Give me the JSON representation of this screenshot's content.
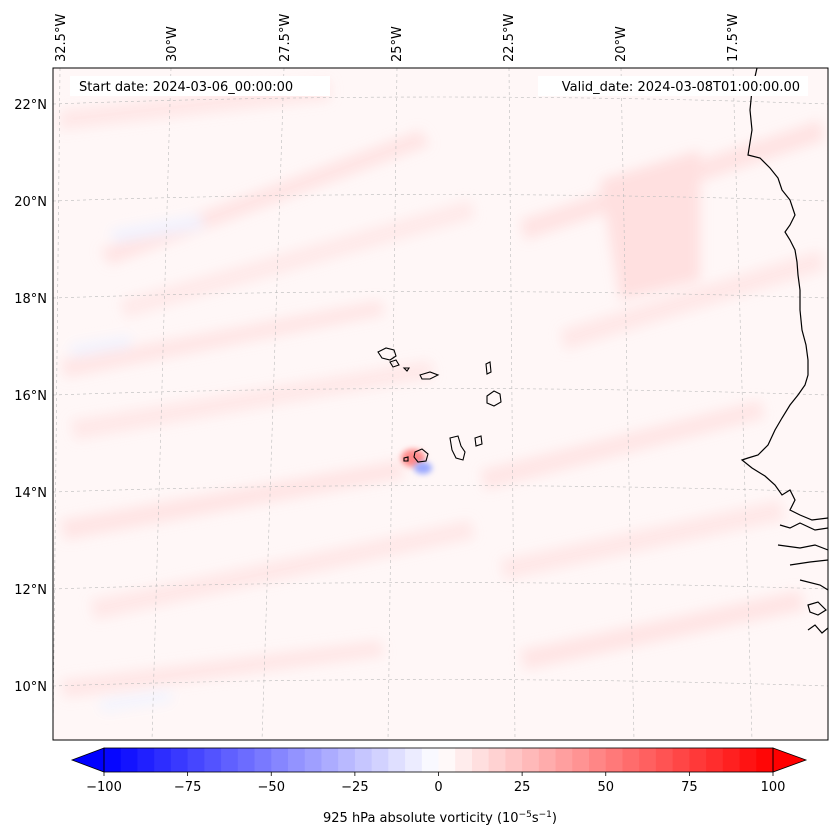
{
  "header": {
    "start_date": "Start date: 2024-03-06_00:00:00",
    "valid_date": "Valid_date: 2024-03-08T01:00:00.00"
  },
  "axes": {
    "lon_labels": [
      "32.5°W",
      "30°W",
      "27.5°W",
      "25°W",
      "22.5°W",
      "20°W",
      "17.5°W"
    ],
    "lat_labels": [
      "22°N",
      "20°N",
      "18°N",
      "16°N",
      "14°N",
      "12°N",
      "10°N"
    ]
  },
  "colorbar": {
    "label_prefix": "925 hPa absolute vorticity (10",
    "label_exp1": "−5",
    "label_mid": "s",
    "label_exp2": "−1",
    "label_suffix": ")",
    "ticks": [
      "−100",
      "−75",
      "−50",
      "−25",
      "0",
      "25",
      "50",
      "75",
      "100"
    ],
    "min": -100,
    "max": 100,
    "colors": {
      "negative": "#0000ff",
      "zero": "#ffffff",
      "positive": "#ff0000"
    }
  },
  "map": {
    "coastline_color": "#000000",
    "gridline_color": "#bbbbbb",
    "background_tint": "#fff7f7"
  }
}
